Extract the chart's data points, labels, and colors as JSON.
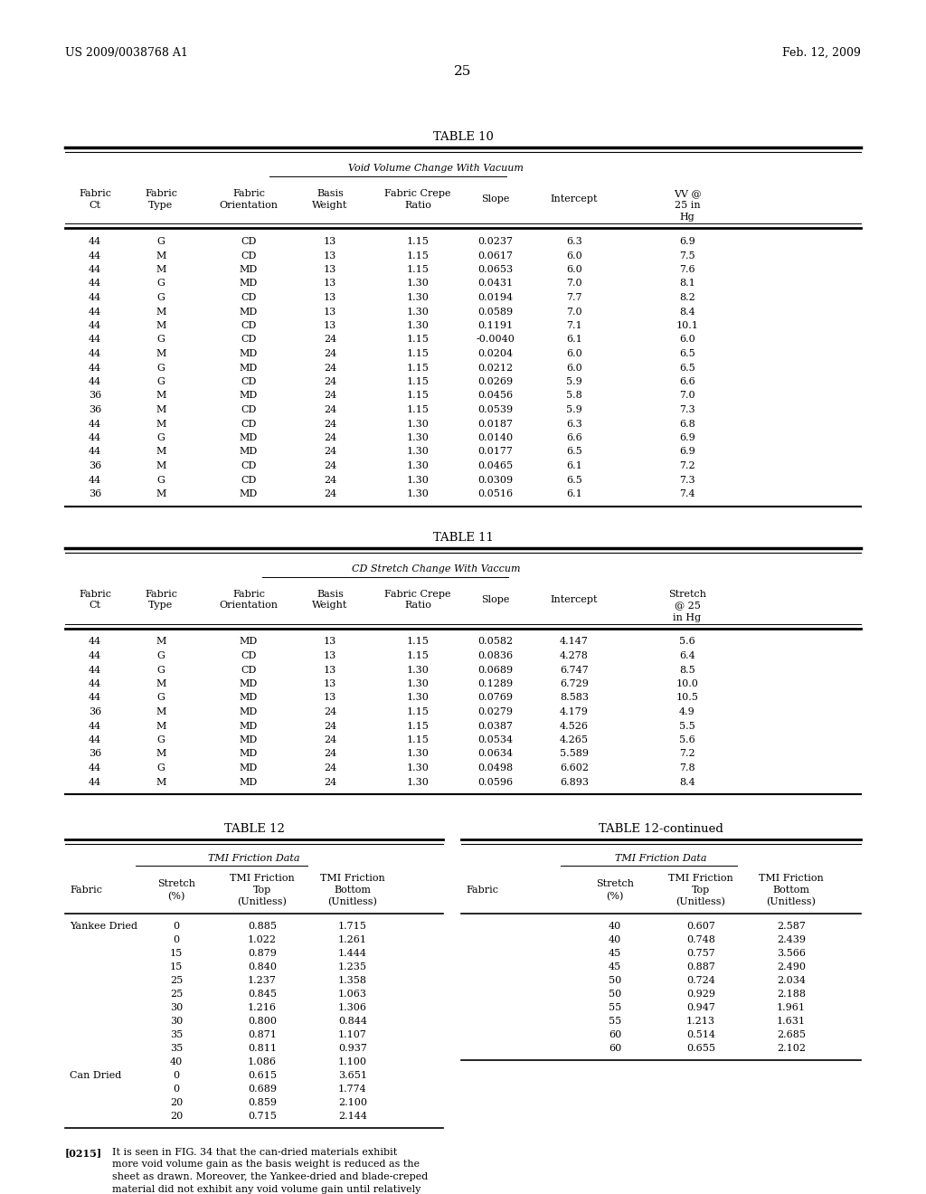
{
  "header_left": "US 2009/0038768 A1",
  "header_right": "Feb. 12, 2009",
  "page_number": "25",
  "table10_title": "TABLE 10",
  "table10_subtitle": "Void Volume Change With Vacuum",
  "table10_data": [
    [
      "44",
      "G",
      "CD",
      "13",
      "1.15",
      "0.0237",
      "6.3",
      "6.9"
    ],
    [
      "44",
      "M",
      "CD",
      "13",
      "1.15",
      "0.0617",
      "6.0",
      "7.5"
    ],
    [
      "44",
      "M",
      "MD",
      "13",
      "1.15",
      "0.0653",
      "6.0",
      "7.6"
    ],
    [
      "44",
      "G",
      "MD",
      "13",
      "1.30",
      "0.0431",
      "7.0",
      "8.1"
    ],
    [
      "44",
      "G",
      "CD",
      "13",
      "1.30",
      "0.0194",
      "7.7",
      "8.2"
    ],
    [
      "44",
      "M",
      "MD",
      "13",
      "1.30",
      "0.0589",
      "7.0",
      "8.4"
    ],
    [
      "44",
      "M",
      "CD",
      "13",
      "1.30",
      "0.1191",
      "7.1",
      "10.1"
    ],
    [
      "44",
      "G",
      "CD",
      "24",
      "1.15",
      "-0.0040",
      "6.1",
      "6.0"
    ],
    [
      "44",
      "M",
      "MD",
      "24",
      "1.15",
      "0.0204",
      "6.0",
      "6.5"
    ],
    [
      "44",
      "G",
      "MD",
      "24",
      "1.15",
      "0.0212",
      "6.0",
      "6.5"
    ],
    [
      "44",
      "G",
      "CD",
      "24",
      "1.15",
      "0.0269",
      "5.9",
      "6.6"
    ],
    [
      "36",
      "M",
      "MD",
      "24",
      "1.15",
      "0.0456",
      "5.8",
      "7.0"
    ],
    [
      "36",
      "M",
      "CD",
      "24",
      "1.15",
      "0.0539",
      "5.9",
      "7.3"
    ],
    [
      "44",
      "M",
      "CD",
      "24",
      "1.30",
      "0.0187",
      "6.3",
      "6.8"
    ],
    [
      "44",
      "G",
      "MD",
      "24",
      "1.30",
      "0.0140",
      "6.6",
      "6.9"
    ],
    [
      "44",
      "M",
      "MD",
      "24",
      "1.30",
      "0.0177",
      "6.5",
      "6.9"
    ],
    [
      "36",
      "M",
      "CD",
      "24",
      "1.30",
      "0.0465",
      "6.1",
      "7.2"
    ],
    [
      "44",
      "G",
      "CD",
      "24",
      "1.30",
      "0.0309",
      "6.5",
      "7.3"
    ],
    [
      "36",
      "M",
      "MD",
      "24",
      "1.30",
      "0.0516",
      "6.1",
      "7.4"
    ]
  ],
  "table11_title": "TABLE 11",
  "table11_subtitle": "CD Stretch Change With Vaccum",
  "table11_data": [
    [
      "44",
      "M",
      "MD",
      "13",
      "1.15",
      "0.0582",
      "4.147",
      "5.6"
    ],
    [
      "44",
      "G",
      "CD",
      "13",
      "1.15",
      "0.0836",
      "4.278",
      "6.4"
    ],
    [
      "44",
      "G",
      "CD",
      "13",
      "1.30",
      "0.0689",
      "6.747",
      "8.5"
    ],
    [
      "44",
      "M",
      "MD",
      "13",
      "1.30",
      "0.1289",
      "6.729",
      "10.0"
    ],
    [
      "44",
      "G",
      "MD",
      "13",
      "1.30",
      "0.0769",
      "8.583",
      "10.5"
    ],
    [
      "36",
      "M",
      "MD",
      "24",
      "1.15",
      "0.0279",
      "4.179",
      "4.9"
    ],
    [
      "44",
      "M",
      "MD",
      "24",
      "1.15",
      "0.0387",
      "4.526",
      "5.5"
    ],
    [
      "44",
      "G",
      "MD",
      "24",
      "1.15",
      "0.0534",
      "4.265",
      "5.6"
    ],
    [
      "36",
      "M",
      "MD",
      "24",
      "1.30",
      "0.0634",
      "5.589",
      "7.2"
    ],
    [
      "44",
      "G",
      "MD",
      "24",
      "1.30",
      "0.0498",
      "6.602",
      "7.8"
    ],
    [
      "44",
      "M",
      "MD",
      "24",
      "1.30",
      "0.0596",
      "6.893",
      "8.4"
    ]
  ],
  "table12_title": "TABLE 12",
  "table12_subtitle": "TMI Friction Data",
  "table12_data": [
    [
      "Yankee Dried",
      "0",
      "0.885",
      "1.715"
    ],
    [
      "",
      "0",
      "1.022",
      "1.261"
    ],
    [
      "",
      "15",
      "0.879",
      "1.444"
    ],
    [
      "",
      "15",
      "0.840",
      "1.235"
    ],
    [
      "",
      "25",
      "1.237",
      "1.358"
    ],
    [
      "",
      "25",
      "0.845",
      "1.063"
    ],
    [
      "",
      "30",
      "1.216",
      "1.306"
    ],
    [
      "",
      "30",
      "0.800",
      "0.844"
    ],
    [
      "",
      "35",
      "0.871",
      "1.107"
    ],
    [
      "",
      "35",
      "0.811",
      "0.937"
    ],
    [
      "",
      "40",
      "1.086",
      "1.100"
    ],
    [
      "Can Dried",
      "0",
      "0.615",
      "3.651"
    ],
    [
      "",
      "0",
      "0.689",
      "1.774"
    ],
    [
      "",
      "20",
      "0.859",
      "2.100"
    ],
    [
      "",
      "20",
      "0.715",
      "2.144"
    ]
  ],
  "table12cont_title": "TABLE 12-continued",
  "table12cont_subtitle": "TMI Friction Data",
  "table12cont_data": [
    [
      "",
      "40",
      "0.607",
      "2.587"
    ],
    [
      "",
      "40",
      "0.748",
      "2.439"
    ],
    [
      "",
      "45",
      "0.757",
      "3.566"
    ],
    [
      "",
      "45",
      "0.887",
      "2.490"
    ],
    [
      "",
      "50",
      "0.724",
      "2.034"
    ],
    [
      "",
      "50",
      "0.929",
      "2.188"
    ],
    [
      "",
      "55",
      "0.947",
      "1.961"
    ],
    [
      "",
      "55",
      "1.213",
      "1.631"
    ],
    [
      "",
      "60",
      "0.514",
      "2.685"
    ],
    [
      "",
      "60",
      "0.655",
      "2.102"
    ]
  ],
  "footnote_tag": "[0215]",
  "footnote_body": "It is seen in FIG. 34 that the can-dried materials exhibit more void volume gain as the basis weight is reduced as the sheet as drawn. Moreover, the Yankee-dried and blade-creped material did not exhibit any void volume gain until relatively large elongation."
}
